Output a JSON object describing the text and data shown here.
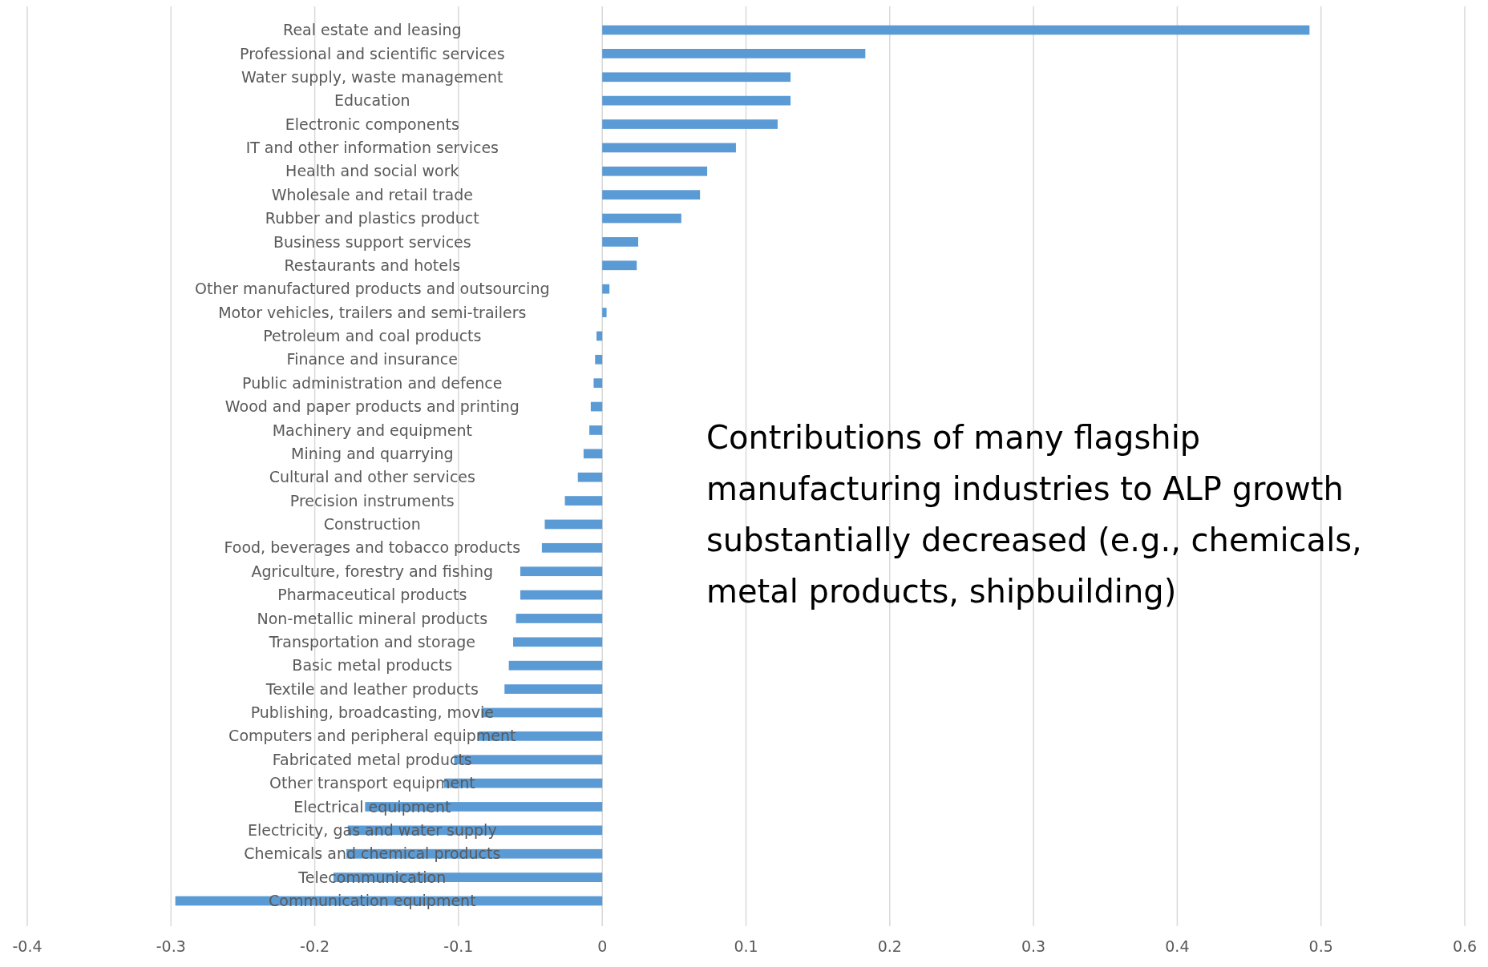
{
  "chart_data": {
    "type": "bar",
    "orientation": "horizontal",
    "categories": [
      "Real estate and leasing",
      "Professional and scientific services",
      "Water supply, waste management",
      "Education",
      "Electronic components",
      "IT and other information services",
      "Health and social work",
      "Wholesale and retail trade",
      "Rubber and plastics product",
      "Business support services",
      "Restaurants and hotels",
      "Other manufactured products and outsourcing",
      "Motor vehicles, trailers and semi-trailers",
      "Petroleum and coal products",
      "Finance and insurance",
      "Public administration and defence",
      "Wood and paper products and printing",
      "Machinery and equipment",
      "Mining and quarrying",
      "Cultural and other services",
      "Precision instruments",
      "Construction",
      "Food, beverages and tobacco products",
      "Agriculture, forestry and fishing",
      "Pharmaceutical products",
      "Non-metallic mineral products",
      "Transportation and storage",
      "Basic metal products",
      "Textile and leather products",
      "Publishing, broadcasting, movie",
      "Computers and peripheral equipment",
      "Fabricated metal products",
      "Other transport equipment",
      "Electrical equipment",
      "Electricity, gas and water supply",
      "Chemicals and chemical products",
      "Telecommunication",
      "Communication equipment"
    ],
    "values": [
      0.492,
      0.183,
      0.131,
      0.131,
      0.122,
      0.093,
      0.073,
      0.068,
      0.055,
      0.025,
      0.024,
      0.005,
      0.003,
      -0.004,
      -0.005,
      -0.006,
      -0.008,
      -0.009,
      -0.013,
      -0.017,
      -0.026,
      -0.04,
      -0.042,
      -0.057,
      -0.057,
      -0.06,
      -0.062,
      -0.065,
      -0.068,
      -0.084,
      -0.086,
      -0.103,
      -0.11,
      -0.165,
      -0.177,
      -0.178,
      -0.187,
      -0.297
    ],
    "color": "#5b9bd5",
    "xlim": [
      -0.4,
      0.6
    ],
    "xticks": [
      -0.4,
      -0.3,
      -0.2,
      -0.1,
      0,
      0.1,
      0.2,
      0.3,
      0.4,
      0.5,
      0.6
    ],
    "grid": "x",
    "annotations": [
      "Contributions of many flagship\nmanufacturing industries to ALP growth\nsubstantially decreased (e.g., chemicals,\nmetal products, shipbuilding)"
    ]
  }
}
